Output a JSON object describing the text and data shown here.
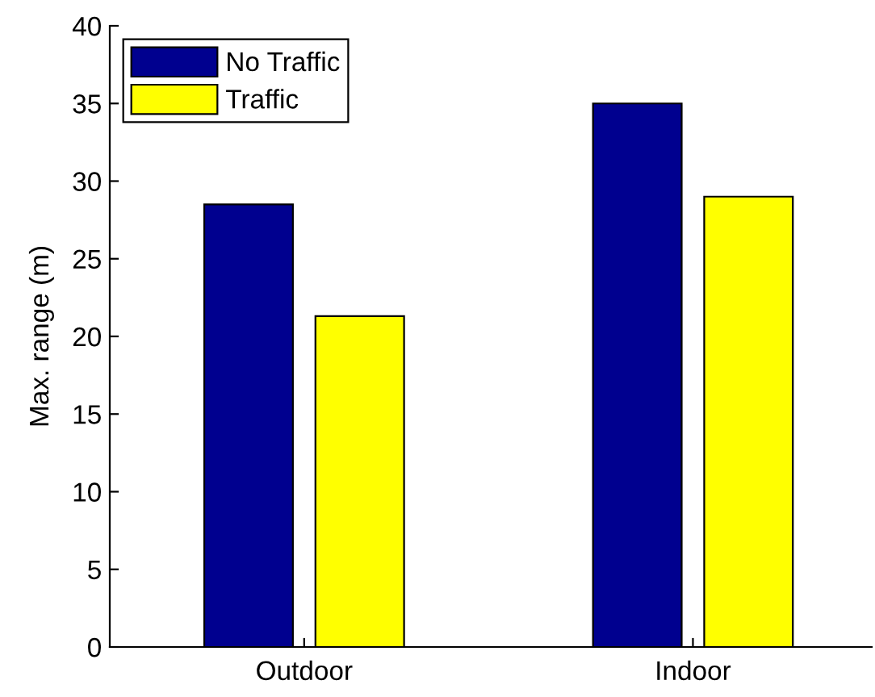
{
  "chart_data": {
    "type": "bar",
    "ylabel": "Max. range (m)",
    "categories": [
      "Outdoor",
      "Indoor"
    ],
    "series": [
      {
        "name": "No Traffic",
        "color": "#00008f",
        "values": [
          28.5,
          35
        ]
      },
      {
        "name": "Traffic",
        "color": "#ffff00",
        "values": [
          21.3,
          29
        ]
      }
    ],
    "ylim": [
      0,
      40
    ],
    "yticks": [
      0,
      5,
      10,
      15,
      20,
      25,
      30,
      35,
      40
    ],
    "grid": false,
    "legend": "top left"
  }
}
